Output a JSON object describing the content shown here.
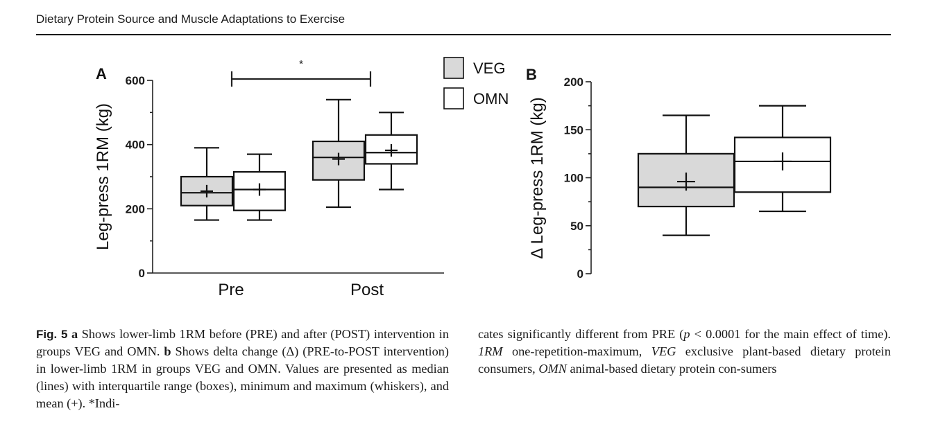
{
  "running_head": "Dietary Protein Source and Muscle Adaptations to Exercise",
  "legend": [
    {
      "name": "VEG",
      "fill": "#d9d9d9"
    },
    {
      "name": "OMN",
      "fill": "#ffffff"
    }
  ],
  "significance_marker": "*",
  "chart_data": [
    {
      "panel": "A",
      "type": "boxplot",
      "ylabel": "Leg-press 1RM (kg)",
      "xlabel": "",
      "categories": [
        "Pre",
        "Post"
      ],
      "ylim": [
        0,
        600
      ],
      "yticks": [
        0,
        200,
        400,
        600
      ],
      "yticklabels": [
        "0",
        "200",
        "400",
        "600"
      ],
      "series": [
        {
          "name": "VEG",
          "boxes": [
            {
              "min": 165,
              "q1": 210,
              "median": 250,
              "q3": 300,
              "max": 390,
              "mean": 255
            },
            {
              "min": 205,
              "q1": 290,
              "median": 360,
              "q3": 410,
              "max": 540,
              "mean": 355
            }
          ]
        },
        {
          "name": "OMN",
          "boxes": [
            {
              "min": 165,
              "q1": 195,
              "median": 260,
              "q3": 315,
              "max": 370,
              "mean": 260
            },
            {
              "min": 260,
              "q1": 340,
              "median": 375,
              "q3": 430,
              "max": 500,
              "mean": 382
            }
          ]
        }
      ],
      "annotation": {
        "text": "*",
        "from": "Pre",
        "to": "Post",
        "y": 600
      }
    },
    {
      "panel": "B",
      "type": "boxplot",
      "ylabel": "Δ Leg-press 1RM (kg)",
      "xlabel": "",
      "categories": [
        ""
      ],
      "ylim": [
        0,
        200
      ],
      "yticks": [
        0,
        50,
        100,
        150,
        200
      ],
      "yticklabels": [
        "0",
        "50",
        "100",
        "150",
        "200"
      ],
      "series": [
        {
          "name": "VEG",
          "boxes": [
            {
              "min": 40,
              "q1": 70,
              "median": 90,
              "q3": 125,
              "max": 165,
              "mean": 96
            }
          ]
        },
        {
          "name": "OMN",
          "boxes": [
            {
              "min": 65,
              "q1": 85,
              "median": 117,
              "q3": 142,
              "max": 175,
              "mean": 117
            }
          ]
        }
      ]
    }
  ],
  "caption": {
    "fig_label": "Fig. 5",
    "a_label": "a",
    "text_1": " Shows lower-limb 1RM before (PRE) and after (POST) intervention in groups VEG and OMN. ",
    "b_label": "b",
    "text_2": " Shows delta change (Δ) (PRE-to-POST intervention) in lower-limb 1RM in groups VEG and OMN. Values are presented as median (lines) with interquartile range (boxes), minimum and maximum (whiskers), and mean (+). *Indi-",
    "text_3": "cates significantly different from PRE (",
    "p_italic": "p",
    "text_4": " < 0.0001 for the main effect of time). ",
    "abbr_1": "1RM",
    "text_5": " one-repetition-maximum, ",
    "abbr_2": "VEG",
    "text_6": " exclusive plant-based dietary protein consumers, ",
    "abbr_3": "OMN",
    "text_7": " animal-based dietary protein con-sumers"
  }
}
